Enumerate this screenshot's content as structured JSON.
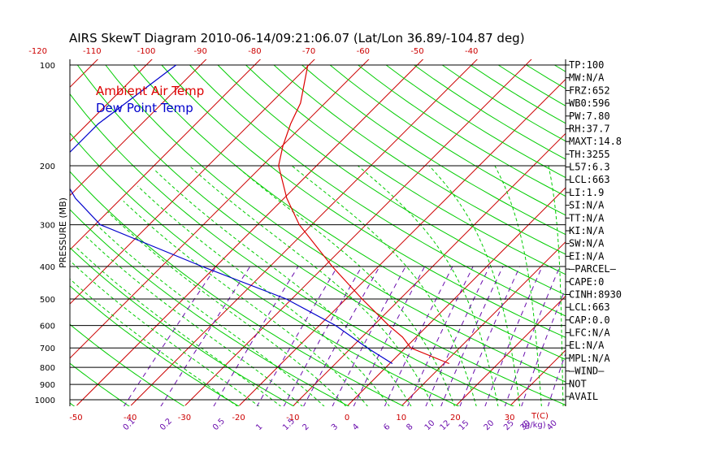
{
  "title": "AIRS SkewT Diagram 2010-06-14/09:21:06.07 (Lat/Lon 36.89/-104.87 deg)",
  "chart_data": {
    "type": "line",
    "title": "AIRS SkewT Diagram 2010-06-14/09:21:06.07 (Lat/Lon 36.89/-104.87 deg)",
    "ylabel": "PRESSURE (MB)",
    "xlabel": "T(C)",
    "mixing_ratio_label": "(g/kg)",
    "y_scale": "log",
    "ylim": [
      1040,
      100
    ],
    "pressure_ticks": [
      100,
      200,
      300,
      400,
      500,
      600,
      700,
      800,
      900,
      1000
    ],
    "bottom_temp_ticks": [
      -50,
      -40,
      -30,
      -20,
      -10,
      0,
      10,
      20,
      30
    ],
    "top_temp_ticks": [
      -120,
      -110,
      -100,
      -90,
      -80,
      -70,
      -60,
      -50,
      -40
    ],
    "mixing_ratio_ticks": [
      "0.1",
      "0.2",
      "0.5",
      "1",
      "1.5",
      "2",
      "3",
      "4",
      "6",
      "8",
      "10",
      "12",
      "15",
      "20",
      "25",
      "30",
      "40"
    ],
    "legend": [
      {
        "name": "Ambient Air Temp",
        "color": "#dd0000"
      },
      {
        "name": "Dew Point Temp",
        "color": "#0000cc"
      }
    ],
    "series": [
      {
        "name": "Ambient Air Temp",
        "color": "#dd0000",
        "points": [
          {
            "p": 100,
            "t": -70.2
          },
          {
            "p": 130,
            "t": -64.5
          },
          {
            "p": 150,
            "t": -62.5
          },
          {
            "p": 175,
            "t": -59.8
          },
          {
            "p": 200,
            "t": -57.0
          },
          {
            "p": 250,
            "t": -49.5
          },
          {
            "p": 300,
            "t": -42.3
          },
          {
            "p": 400,
            "t": -28.5
          },
          {
            "p": 500,
            "t": -17.0
          },
          {
            "p": 600,
            "t": -7.2
          },
          {
            "p": 650,
            "t": -2.5
          },
          {
            "p": 700,
            "t": 1.0
          },
          {
            "p": 780,
            "t": 11.0
          }
        ]
      },
      {
        "name": "Dew Point Temp",
        "color": "#0000cc",
        "points": [
          {
            "p": 100,
            "t": -94.5
          },
          {
            "p": 150,
            "t": -98.0
          },
          {
            "p": 200,
            "t": -98.0
          },
          {
            "p": 250,
            "t": -88.5
          },
          {
            "p": 300,
            "t": -79.0
          },
          {
            "p": 400,
            "t": -52.5
          },
          {
            "p": 500,
            "t": -31.0
          },
          {
            "p": 600,
            "t": -17.0
          },
          {
            "p": 700,
            "t": -7.0
          },
          {
            "p": 780,
            "t": 0.5
          }
        ]
      }
    ]
  },
  "indices": [
    "TP:100",
    "MW:N/A",
    "FRZ:652",
    "WB0:596",
    "PW:7.80",
    "RH:37.7",
    "MAXT:14.8",
    "TH:3255",
    "L57:6.3",
    "LCL:663",
    "LI:1.9",
    "SI:N/A",
    "TT:N/A",
    "KI:N/A",
    "SW:N/A",
    "EI:N/A",
    "—PARCEL—",
    "CAPE:0",
    "CINH:8930",
    "LCL:663",
    "CAP:0.0",
    "LFC:N/A",
    "EL:N/A",
    "MPL:N/A",
    "—WIND—",
    "NOT",
    "AVAIL"
  ],
  "colors": {
    "isotherm": "#cc0000",
    "dry_adiabat": "#00cc00",
    "moist_adiabat": "#00cc00",
    "mixing_ratio": "#6a0dad",
    "isobar": "#000000"
  }
}
